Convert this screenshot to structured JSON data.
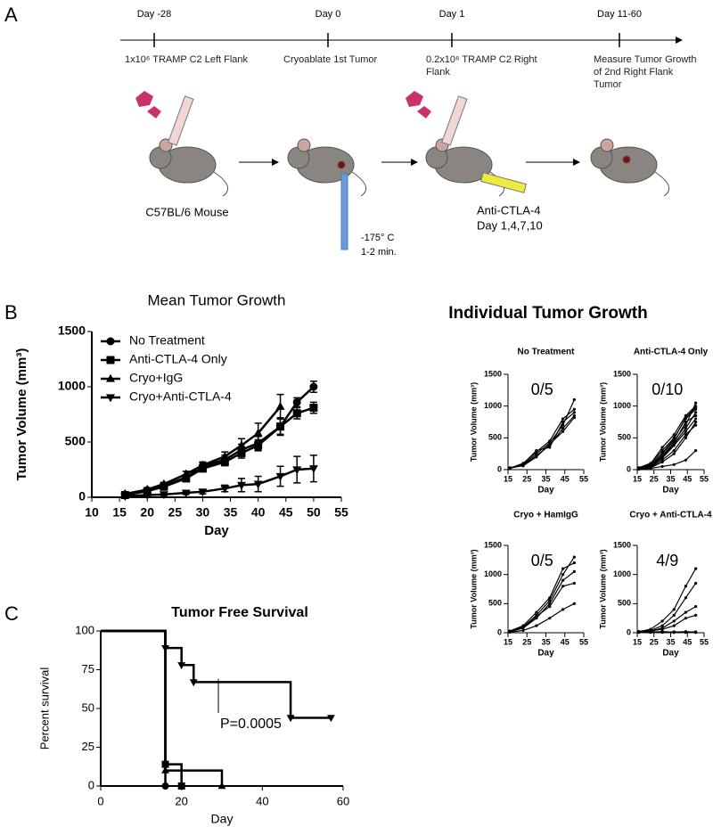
{
  "panel_labels": [
    "A",
    "B",
    "C"
  ],
  "timeline": [
    {
      "day": "Day -28",
      "note": "1x10⁶ TRAMP C2 Left Flank"
    },
    {
      "day": "Day 0",
      "note": "Cryoablate 1st Tumor"
    },
    {
      "day": "Day 1",
      "note": "0.2x10⁶ TRAMP C2 Right Flank"
    },
    {
      "day": "Day 11-60",
      "note": "Measure Tumor Growth of 2nd Right Flank Tumor"
    }
  ],
  "mouse_label": "C57BL/6 Mouse",
  "cryo_temp": "-175° C",
  "cryo_time": "1-2 min.",
  "treatment": "Anti-CTLA-4",
  "treatment_days": "Day 1,4,7,10",
  "individual_title": "Individual Tumor Growth",
  "chart_data": [
    {
      "type": "line",
      "title": "Mean Tumor Growth",
      "xlabel": "Day",
      "ylabel": "Tumor Volume (mm³)",
      "x": [
        16,
        20,
        23,
        27,
        30,
        34,
        37,
        40,
        44,
        47,
        50
      ],
      "xlim": [
        10,
        55
      ],
      "xticks": [
        10,
        15,
        20,
        25,
        30,
        35,
        40,
        45,
        50,
        55
      ],
      "ylim": [
        0,
        1500
      ],
      "yticks": [
        0,
        500,
        1000,
        1500
      ],
      "legend": "upper left",
      "color": "#000000",
      "series": [
        {
          "name": "No Treatment",
          "marker": "circle",
          "values": [
            25,
            65,
            105,
            180,
            280,
            340,
            430,
            490,
            640,
            860,
            1000
          ],
          "errors": [
            5,
            10,
            15,
            20,
            30,
            40,
            50,
            60,
            80,
            40,
            50
          ]
        },
        {
          "name": "Anti-CTLA-4 Only",
          "marker": "square",
          "values": [
            20,
            55,
            95,
            170,
            260,
            320,
            400,
            470,
            640,
            760,
            810
          ],
          "errors": [
            5,
            10,
            15,
            20,
            30,
            35,
            45,
            50,
            70,
            50,
            50
          ]
        },
        {
          "name": "Cryo+IgG",
          "marker": "triangle-up",
          "values": [
            30,
            70,
            120,
            210,
            290,
            370,
            470,
            580,
            820,
            null,
            null
          ],
          "errors": [
            5,
            10,
            15,
            25,
            30,
            40,
            60,
            90,
            110,
            null,
            null
          ]
        },
        {
          "name": "Cryo+Anti-CTLA-4",
          "marker": "triangle-down",
          "values": [
            10,
            20,
            25,
            40,
            50,
            80,
            110,
            120,
            190,
            250,
            260
          ],
          "errors": [
            3,
            5,
            10,
            15,
            20,
            30,
            60,
            70,
            90,
            120,
            120
          ]
        }
      ]
    },
    {
      "type": "line",
      "title": "No Treatment",
      "annotation": "0/5",
      "xlabel": "Day",
      "ylabel": "Tumor Volume (mm³)",
      "x": [
        16,
        23,
        30,
        37,
        44,
        50
      ],
      "xlim": [
        15,
        55
      ],
      "xticks": [
        15,
        25,
        35,
        45,
        55
      ],
      "ylim": [
        0,
        1500
      ],
      "yticks": [
        0,
        500,
        1000,
        1500
      ],
      "color": "#000000",
      "series": [
        {
          "values": [
            30,
            80,
            250,
            420,
            700,
            1100
          ]
        },
        {
          "values": [
            20,
            70,
            220,
            380,
            650,
            850
          ]
        },
        {
          "values": [
            25,
            90,
            300,
            350,
            750,
            900
          ]
        },
        {
          "values": [
            30,
            60,
            200,
            400,
            600,
            820
          ]
        },
        {
          "values": [
            20,
            100,
            280,
            450,
            800,
            950
          ]
        }
      ]
    },
    {
      "type": "line",
      "title": "Anti-CTLA-4 Only",
      "annotation": "0/10",
      "xlabel": "Day",
      "ylabel": "Tumor Volume (mm³)",
      "x": [
        16,
        23,
        30,
        37,
        44,
        50
      ],
      "xlim": [
        15,
        55
      ],
      "xticks": [
        15,
        25,
        35,
        45,
        55
      ],
      "ylim": [
        0,
        1500
      ],
      "yticks": [
        0,
        500,
        1000,
        1500
      ],
      "color": "#000000",
      "series": [
        {
          "values": [
            20,
            80,
            250,
            450,
            700,
            1050
          ]
        },
        {
          "values": [
            30,
            100,
            300,
            500,
            800,
            950
          ]
        },
        {
          "values": [
            10,
            60,
            200,
            400,
            650,
            900
          ]
        },
        {
          "values": [
            20,
            90,
            350,
            550,
            850,
            1000
          ]
        },
        {
          "values": [
            30,
            50,
            180,
            380,
            600,
            800
          ]
        },
        {
          "values": [
            20,
            70,
            220,
            420,
            750,
            850
          ]
        },
        {
          "values": [
            10,
            40,
            150,
            300,
            550,
            700
          ]
        },
        {
          "values": [
            20,
            80,
            260,
            480,
            820,
            980
          ]
        },
        {
          "values": [
            10,
            30,
            120,
            250,
            500,
            750
          ]
        },
        {
          "values": [
            5,
            20,
            50,
            80,
            150,
            300
          ]
        }
      ]
    },
    {
      "type": "line",
      "title": "Cryo + HamIgG",
      "annotation": "0/5",
      "xlabel": "Day",
      "ylabel": "Tumor Volume (mm³)",
      "x": [
        16,
        23,
        30,
        37,
        44,
        50
      ],
      "xlim": [
        15,
        55
      ],
      "xticks": [
        15,
        25,
        35,
        45,
        55
      ],
      "ylim": [
        0,
        1500
      ],
      "yticks": [
        0,
        500,
        1000,
        1500
      ],
      "color": "#000000",
      "series": [
        {
          "values": [
            30,
            100,
            300,
            550,
            1000,
            1300
          ]
        },
        {
          "values": [
            20,
            80,
            250,
            500,
            900,
            1050
          ]
        },
        {
          "values": [
            30,
            120,
            350,
            600,
            1100,
            1200
          ]
        },
        {
          "values": [
            20,
            90,
            280,
            450,
            800,
            850
          ]
        },
        {
          "values": [
            10,
            40,
            120,
            250,
            400,
            500
          ]
        }
      ]
    },
    {
      "type": "line",
      "title": "Cryo + Anti-CTLA-4",
      "annotation": "4/9",
      "xlabel": "Day",
      "ylabel": "Tumor Volume (mm³)",
      "x": [
        16,
        23,
        30,
        37,
        44,
        50
      ],
      "xlim": [
        15,
        55
      ],
      "xticks": [
        15,
        25,
        35,
        45,
        55
      ],
      "ylim": [
        0,
        1500
      ],
      "yticks": [
        0,
        500,
        1000,
        1500
      ],
      "color": "#000000",
      "series": [
        {
          "values": [
            20,
            60,
            200,
            400,
            800,
            1100
          ]
        },
        {
          "values": [
            20,
            40,
            120,
            300,
            600,
            850
          ]
        },
        {
          "values": [
            10,
            30,
            80,
            200,
            350,
            450
          ]
        },
        {
          "values": [
            10,
            30,
            60,
            120,
            250,
            300
          ]
        },
        {
          "values": [
            10,
            15,
            10,
            5,
            5,
            5
          ]
        },
        {
          "values": [
            15,
            10,
            20,
            10,
            5,
            5
          ]
        },
        {
          "values": [
            5,
            20,
            10,
            15,
            10,
            5
          ]
        },
        {
          "values": [
            10,
            5,
            5,
            10,
            20,
            10
          ]
        },
        {
          "values": [
            20,
            10,
            15,
            5,
            10,
            15
          ]
        }
      ]
    },
    {
      "type": "step",
      "title": "Tumor Free Survival",
      "annotation": "P=0.0005",
      "xlabel": "Day",
      "ylabel": "Percent survival",
      "xlim": [
        0,
        60
      ],
      "xticks": [
        0,
        20,
        40,
        60
      ],
      "ylim": [
        0,
        100
      ],
      "yticks": [
        0,
        25,
        50,
        75,
        100
      ],
      "color": "#000000",
      "series": [
        {
          "marker": "triangle-down",
          "x": [
            0,
            16,
            20,
            23,
            47,
            57
          ],
          "values": [
            100,
            89,
            78,
            67,
            44,
            44
          ]
        },
        {
          "marker": "circle",
          "x": [
            0,
            16
          ],
          "values": [
            100,
            0
          ]
        },
        {
          "marker": "square",
          "x": [
            0,
            16,
            20
          ],
          "values": [
            100,
            14,
            0
          ]
        },
        {
          "marker": "triangle-up",
          "x": [
            0,
            16,
            30
          ],
          "values": [
            100,
            10,
            0
          ]
        }
      ]
    }
  ]
}
